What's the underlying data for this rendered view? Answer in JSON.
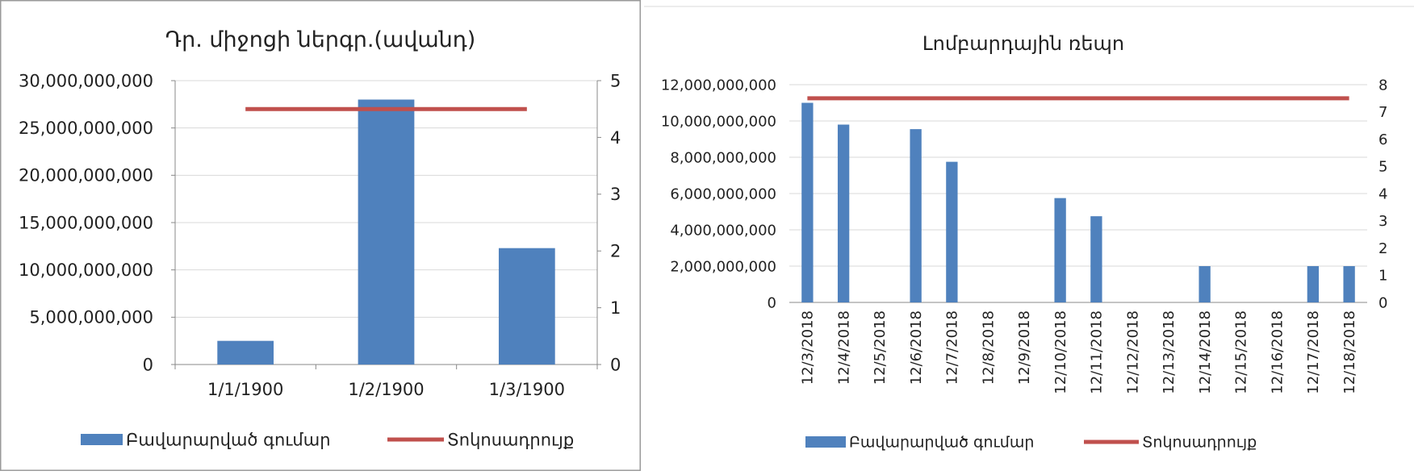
{
  "colors": {
    "bar": "#4f81bd",
    "line": "#c0504d",
    "axis": "#888888",
    "grid": "#d9d9d9",
    "frame": "#9a9a9a"
  },
  "chart_data": [
    {
      "type": "bar",
      "title": "Դր. միջոցի ներգր.(ավանդ)",
      "categories": [
        "1/1/1900",
        "1/2/1900",
        "1/3/1900"
      ],
      "tick_labels_left": [
        "0",
        "5,000,000,000",
        "10,000,000,000",
        "15,000,000,000",
        "20,000,000,000",
        "25,000,000,000",
        "30,000,000,000"
      ],
      "tick_labels_right": [
        "0",
        "1",
        "2",
        "3",
        "4",
        "5"
      ],
      "ylim": [
        0,
        30000000000
      ],
      "y2lim": [
        0,
        5
      ],
      "grid": true,
      "legend_position": "bottom",
      "series": [
        {
          "name": "Բավարարված գումար",
          "type": "bar",
          "axis": "left",
          "values": [
            2500000000,
            28000000000,
            12300000000
          ]
        },
        {
          "name": "Տոկոսադրույք",
          "type": "line",
          "axis": "right",
          "values": [
            4.5,
            4.5,
            4.5
          ]
        }
      ]
    },
    {
      "type": "bar",
      "title": "Լոմբարդային ռեպո",
      "categories": [
        "12/3/2018",
        "12/4/2018",
        "12/5/2018",
        "12/6/2018",
        "12/7/2018",
        "12/8/2018",
        "12/9/2018",
        "12/10/2018",
        "12/11/2018",
        "12/12/2018",
        "12/13/2018",
        "12/14/2018",
        "12/15/2018",
        "12/16/2018",
        "12/17/2018",
        "12/18/2018"
      ],
      "tick_labels_left": [
        "0",
        "2,000,000,000",
        "4,000,000,000",
        "6,000,000,000",
        "8,000,000,000",
        "10,000,000,000",
        "12,000,000,000"
      ],
      "tick_labels_right": [
        "0",
        "1",
        "2",
        "3",
        "4",
        "5",
        "6",
        "7",
        "8"
      ],
      "ylim": [
        0,
        12000000000
      ],
      "y2lim": [
        0,
        8
      ],
      "grid": true,
      "legend_position": "bottom",
      "series": [
        {
          "name": "Բավարարված գումար",
          "type": "bar",
          "axis": "left",
          "values": [
            11000000000,
            9800000000,
            0,
            9550000000,
            7750000000,
            0,
            0,
            5750000000,
            4750000000,
            0,
            0,
            2000000000,
            0,
            0,
            2000000000,
            2000000000
          ]
        },
        {
          "name": "Տոկոսադրույք",
          "type": "line",
          "axis": "right",
          "values": [
            7.5,
            7.5,
            7.5,
            7.5,
            7.5,
            7.5,
            7.5,
            7.5,
            7.5,
            7.5,
            7.5,
            7.5,
            7.5,
            7.5,
            7.5,
            7.5
          ]
        }
      ]
    }
  ]
}
